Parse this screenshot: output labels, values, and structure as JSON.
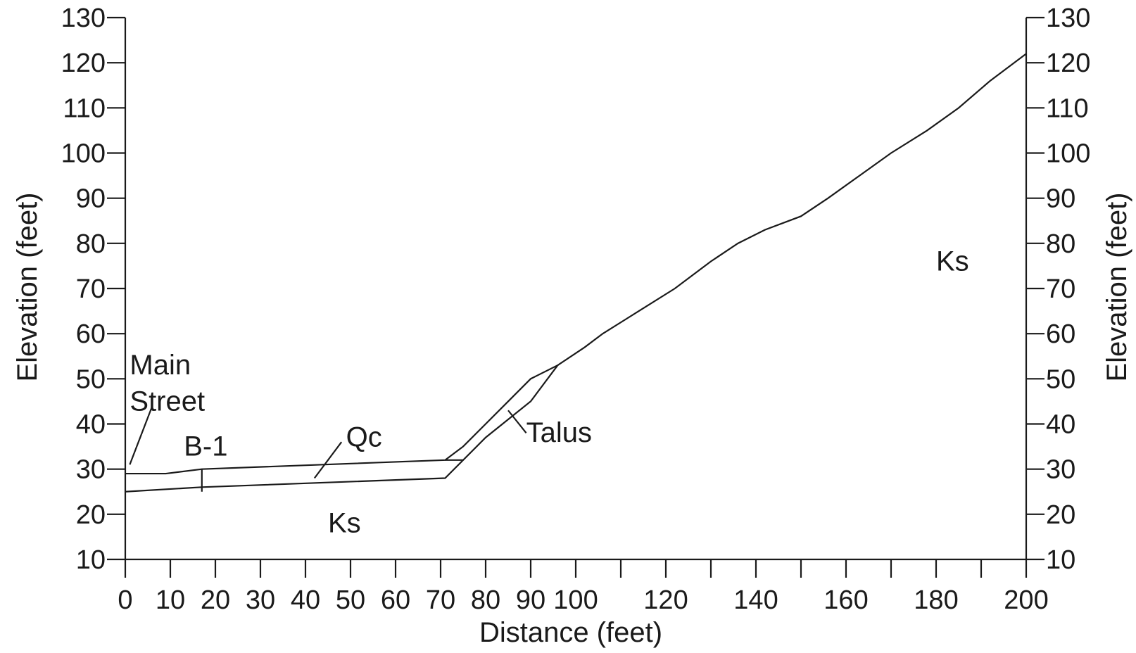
{
  "chart_data": {
    "type": "line",
    "title": "",
    "xlabel": "Distance (feet)",
    "ylabel_left": "Elevation (feet)",
    "ylabel_right": "Elevation (feet)",
    "xlim": [
      0,
      200
    ],
    "ylim": [
      10,
      130
    ],
    "grid": false,
    "x_major_ticks": [
      0,
      20,
      40,
      60,
      80,
      100,
      120,
      140,
      160,
      180,
      200
    ],
    "x_minor_ticks": [
      10,
      30,
      50,
      70,
      90,
      110,
      130,
      150,
      170,
      190
    ],
    "x_tick_labels": [
      "0",
      "10",
      "20",
      "30",
      "40",
      "50",
      "60",
      "70",
      "80",
      "90",
      "100",
      "120",
      "140",
      "160",
      "180",
      "200"
    ],
    "y_ticks": [
      10,
      20,
      30,
      40,
      50,
      60,
      70,
      80,
      90,
      100,
      110,
      120,
      130
    ],
    "y_tick_labels": [
      "10",
      "20",
      "30",
      "40",
      "50",
      "60",
      "70",
      "80",
      "90",
      "100",
      "110",
      "120",
      "130"
    ],
    "series": [
      {
        "x": [
          0,
          9,
          17,
          71,
          75,
          80,
          85,
          90,
          96,
          102,
          106,
          114,
          122,
          130,
          136,
          142,
          150,
          156,
          163,
          170,
          178,
          185,
          192,
          200
        ],
        "y": [
          29,
          29,
          30,
          32,
          35,
          40,
          45,
          50,
          53,
          57,
          60,
          65,
          70,
          76,
          80,
          83,
          86,
          90,
          95,
          100,
          105,
          110,
          116,
          122
        ]
      },
      {
        "x": [
          0,
          17,
          71,
          80,
          90,
          96
        ],
        "y": [
          25,
          26,
          28,
          37,
          45,
          53
        ]
      },
      {
        "x": [
          71,
          75
        ],
        "y": [
          32,
          32
        ]
      },
      {
        "x": [
          17,
          17
        ],
        "y": [
          25,
          30
        ]
      }
    ],
    "annotations": [
      {
        "text": "Main",
        "x": 1,
        "y": 51
      },
      {
        "text": "Street",
        "x": 1,
        "y": 43
      },
      {
        "text": "B-1",
        "x": 13,
        "y": 33
      },
      {
        "text": "Qc",
        "x": 49,
        "y": 35
      },
      {
        "text": "Talus",
        "x": 89,
        "y": 36
      },
      {
        "text": "Ks",
        "x": 45,
        "y": 16
      },
      {
        "text": "Ks",
        "x": 180,
        "y": 74
      }
    ],
    "leader_lines": [
      {
        "from": [
          1,
          31
        ],
        "to": [
          6,
          44
        ]
      },
      {
        "from": [
          42,
          28
        ],
        "to": [
          48,
          36
        ]
      },
      {
        "from": [
          85,
          43
        ],
        "to": [
          89,
          38
        ]
      }
    ]
  }
}
